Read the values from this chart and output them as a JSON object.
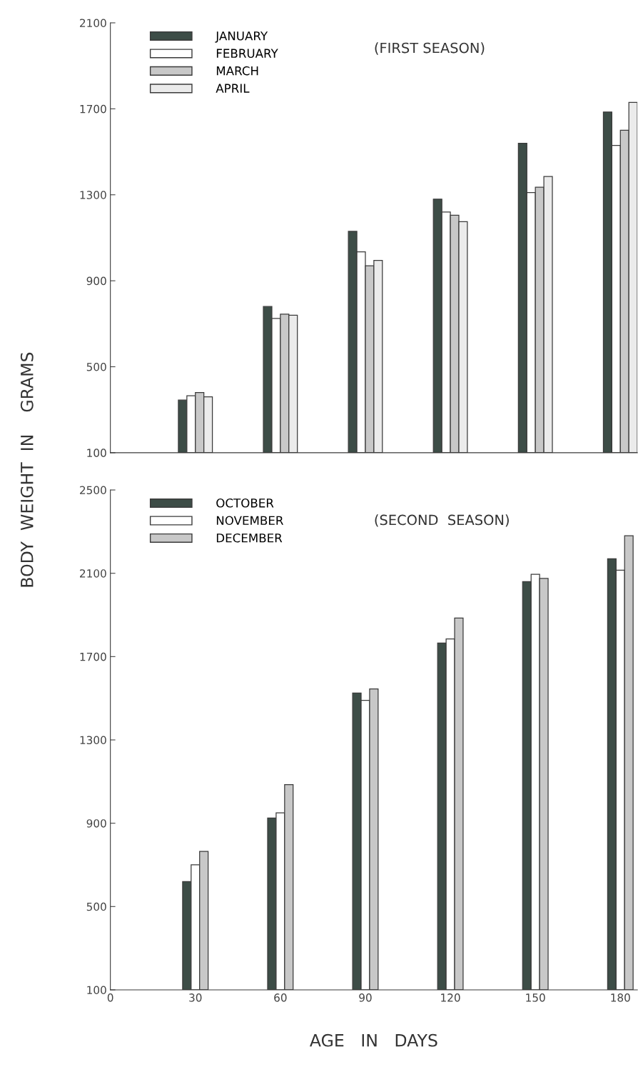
{
  "chart_data": [
    {
      "type": "bar",
      "x": [
        30,
        60,
        90,
        120,
        150,
        180
      ],
      "xlim": [
        0,
        186
      ],
      "ylim": [
        100,
        2100
      ],
      "yticks": [
        100,
        500,
        900,
        1300,
        1700,
        2100
      ],
      "tick_labels": "y",
      "legend": "top left",
      "grid": false,
      "annotations": [
        "(FIRST SEASON)"
      ],
      "series": [
        {
          "name": "JANUARY",
          "color": "#3d4d47",
          "values": [
            345,
            780,
            1130,
            1280,
            1540,
            1685
          ]
        },
        {
          "name": "FEBRUARY",
          "color": "#ffffff",
          "values": [
            365,
            725,
            1035,
            1220,
            1310,
            1530
          ]
        },
        {
          "name": "MARCH",
          "color": "#c8c8c8",
          "values": [
            380,
            745,
            970,
            1205,
            1335,
            1600
          ]
        },
        {
          "name": "APRIL",
          "color": "#ebebeb",
          "values": [
            360,
            740,
            995,
            1175,
            1385,
            1730
          ]
        }
      ]
    },
    {
      "type": "bar",
      "x": [
        30,
        60,
        90,
        120,
        150,
        180
      ],
      "xlim": [
        0,
        186
      ],
      "xticks": [
        0,
        30,
        60,
        90,
        120,
        150,
        180
      ],
      "ylim": [
        100,
        2500
      ],
      "yticks": [
        100,
        500,
        900,
        1300,
        1700,
        2100,
        2500
      ],
      "legend": "top left",
      "grid": false,
      "xlabel": "AGE   IN   DAYS",
      "ylabel": "BODY  WEIGHT  IN    GRAMS",
      "annotations": [
        "(SECOND  SEASON)"
      ],
      "series": [
        {
          "name": "OCTOBER",
          "color": "#3d4d47",
          "values": [
            620,
            925,
            1525,
            1765,
            2060,
            2170
          ]
        },
        {
          "name": "NOVEMBER",
          "color": "#ffffff",
          "values": [
            700,
            950,
            1490,
            1785,
            2095,
            2115
          ]
        },
        {
          "name": "DECEMBER",
          "color": "#c8c8c8",
          "values": [
            765,
            1085,
            1545,
            1885,
            2075,
            2280
          ]
        }
      ]
    }
  ]
}
